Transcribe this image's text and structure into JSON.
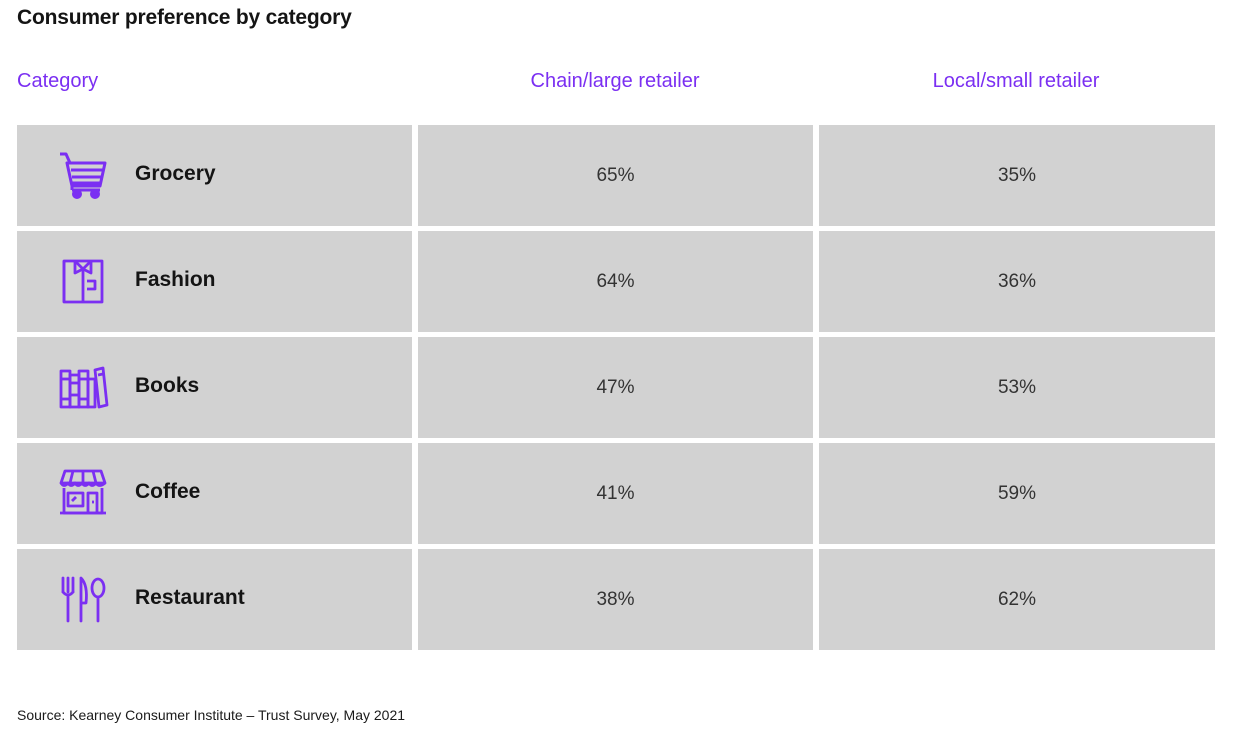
{
  "title": "Consumer preference by category",
  "headers": {
    "category": "Category",
    "chain": "Chain/large retailer",
    "local": "Local/small retailer"
  },
  "source": "Source: Kearney Consumer Institute – Trust Survey, May 2021",
  "colors": {
    "accent": "#7b2ff2",
    "cell_bg": "#d2d2d2"
  },
  "rows": [
    {
      "icon": "shopping-cart-icon",
      "label": "Grocery",
      "chain": "65%",
      "local": "35%"
    },
    {
      "icon": "shirt-icon",
      "label": "Fashion",
      "chain": "64%",
      "local": "36%"
    },
    {
      "icon": "books-icon",
      "label": "Books",
      "chain": "47%",
      "local": "53%"
    },
    {
      "icon": "storefront-icon",
      "label": "Coffee",
      "chain": "41%",
      "local": "59%"
    },
    {
      "icon": "fork-knife-spoon-icon",
      "label": "Restaurant",
      "chain": "38%",
      "local": "62%"
    }
  ],
  "chart_data": {
    "type": "table",
    "title": "Consumer preference by category",
    "columns": [
      "Category",
      "Chain/large retailer",
      "Local/small retailer"
    ],
    "categories": [
      "Grocery",
      "Fashion",
      "Books",
      "Coffee",
      "Restaurant"
    ],
    "series": [
      {
        "name": "Chain/large retailer",
        "values": [
          65,
          64,
          47,
          41,
          38
        ]
      },
      {
        "name": "Local/small retailer",
        "values": [
          35,
          36,
          53,
          59,
          62
        ]
      }
    ],
    "unit": "%"
  }
}
